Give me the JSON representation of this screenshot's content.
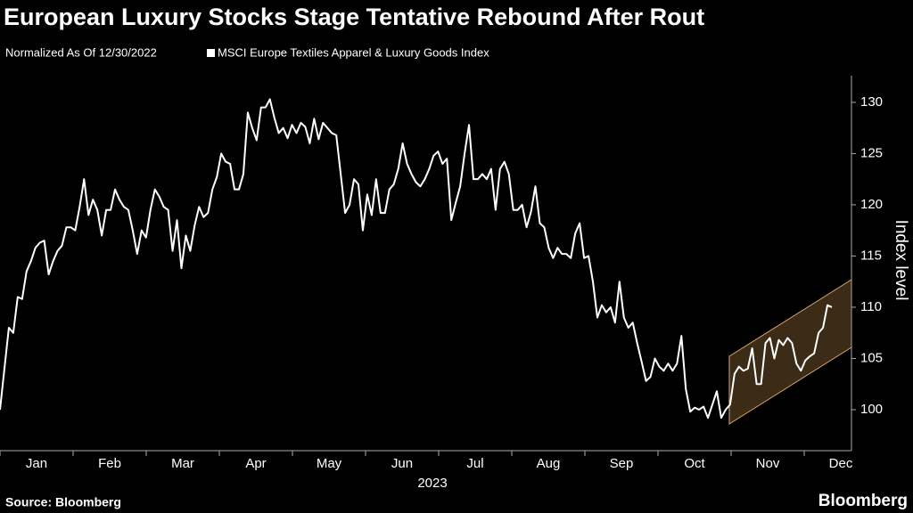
{
  "chart_data": {
    "type": "line",
    "title": "European Luxury Stocks Stage Tentative Rebound After Rout",
    "subtitle": "Normalized As Of 12/30/2022",
    "x_labels": [
      "Jan",
      "Feb",
      "Mar",
      "Apr",
      "May",
      "Jun",
      "Jul",
      "Aug",
      "Sep",
      "Oct",
      "Nov",
      "Dec"
    ],
    "x_year_label": "2023",
    "ylabel": "Index level",
    "ylim": [
      96,
      132.6
    ],
    "yticks": [
      100,
      105,
      110,
      115,
      120,
      125,
      130
    ],
    "series": [
      {
        "name": "MSCI Europe Textiles Apparel & Luxury Goods Index",
        "color": "#ffffff",
        "values": [
          100,
          104,
          108,
          107.5,
          111,
          110.8,
          113.5,
          114.5,
          115.8,
          116.3,
          116.5,
          113.2,
          114.5,
          115.5,
          116,
          117.8,
          117.8,
          117.5,
          119.8,
          122.5,
          119,
          120.5,
          119.5,
          117,
          119.5,
          119.5,
          121.5,
          120.5,
          119.8,
          119.5,
          117.5,
          115.2,
          117.5,
          116.8,
          119.5,
          121.5,
          120.8,
          119.8,
          119.5,
          115.5,
          118.5,
          113.8,
          117,
          115.5,
          118,
          119.8,
          118.8,
          119.2,
          121.5,
          122.7,
          125,
          124.2,
          124,
          121.5,
          121.5,
          123,
          129,
          127.5,
          126.3,
          129.5,
          129.5,
          130.3,
          128.5,
          127,
          127.5,
          126.5,
          127.8,
          127,
          128,
          127.6,
          126,
          128.4,
          126.4,
          128,
          127.5,
          127,
          126.8,
          123,
          119.2,
          120,
          122.5,
          122,
          117.5,
          121,
          119,
          122.5,
          119.2,
          119.2,
          121.5,
          122,
          123.5,
          126,
          124,
          123,
          122.2,
          121.8,
          122.5,
          123.5,
          124.8,
          125.2,
          124,
          124.5,
          118.5,
          120.2,
          121.8,
          125,
          127.8,
          122.5,
          122.5,
          123,
          122.5,
          123.5,
          119.5,
          123.5,
          124.2,
          123,
          119.5,
          119.5,
          120,
          117.8,
          119.3,
          121.8,
          118.2,
          117.8,
          115.8,
          114.8,
          115.8,
          115.2,
          115.2,
          114.8,
          117.2,
          118.2,
          114.8,
          115,
          112.5,
          109,
          110.2,
          109.5,
          110,
          108.5,
          112.5,
          109,
          108,
          108.5,
          106.5,
          104.7,
          102.8,
          103.2,
          105,
          104.2,
          103.8,
          104.5,
          103.8,
          104.5,
          107.2,
          102,
          99.8,
          100.2,
          100,
          100.3,
          99.2,
          100.5,
          101.8,
          99.2,
          100,
          100.5,
          103.5,
          104.2,
          103.8,
          104,
          106,
          102.5,
          102.5,
          106.5,
          107,
          105,
          106.8,
          106.3,
          107,
          106.5,
          104.5,
          103.8,
          104.8,
          105.2,
          105.5,
          107.5,
          108,
          110.2,
          110
        ]
      }
    ],
    "source": "Source: Bloomberg",
    "brand": "Bloomberg"
  }
}
